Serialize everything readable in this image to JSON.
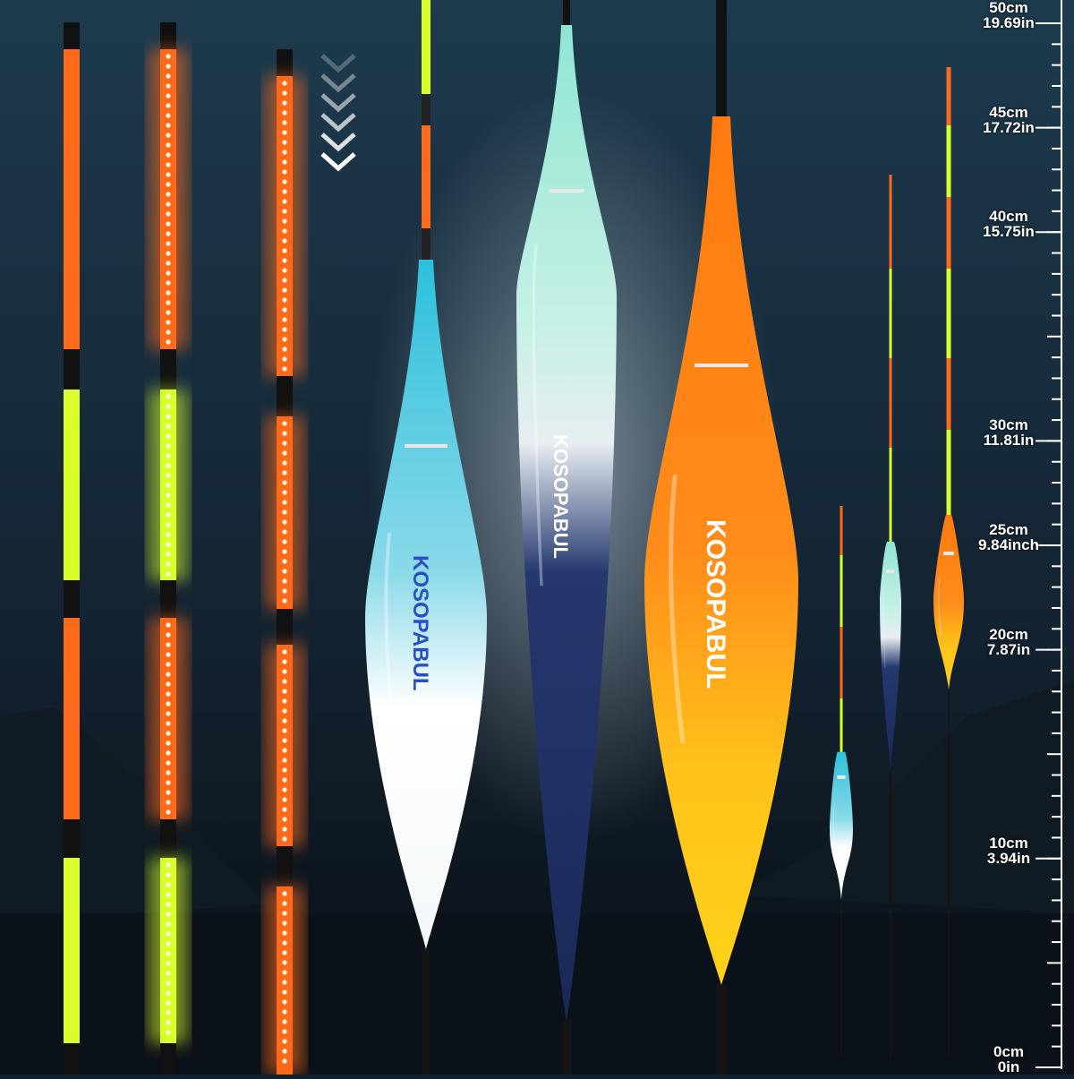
{
  "brand": "KOSOPABUL",
  "colors": {
    "background_top": "#1c3a4c",
    "background_bottom": "#0a0f16",
    "orange": "#ff6a1a",
    "yellow_green": "#d8ff2a",
    "cyan": "#38c8e0",
    "mint": "#8fe6d2",
    "navy": "#1c2e66",
    "gold": "#ffc21a"
  },
  "ruler": {
    "unit_primary": "cm",
    "range_cm": [
      0,
      50
    ],
    "minor_tick_cm": 1,
    "labels": [
      {
        "cm": 50,
        "primary": "50cm",
        "secondary": "19.69in"
      },
      {
        "cm": 45,
        "primary": "45cm",
        "secondary": "17.72in"
      },
      {
        "cm": 40,
        "primary": "40cm",
        "secondary": "15.75in"
      },
      {
        "cm": 30,
        "primary": "30cm",
        "secondary": "11.81in"
      },
      {
        "cm": 25,
        "primary": "25cm",
        "secondary": "9.84inch"
      },
      {
        "cm": 20,
        "primary": "20cm",
        "secondary": "7.87in"
      },
      {
        "cm": 10,
        "primary": "10cm",
        "secondary": "3.94in"
      },
      {
        "cm": 0,
        "primary": "0cm",
        "secondary": "0in"
      }
    ]
  },
  "icons": [
    "chevron-down-icon"
  ]
}
